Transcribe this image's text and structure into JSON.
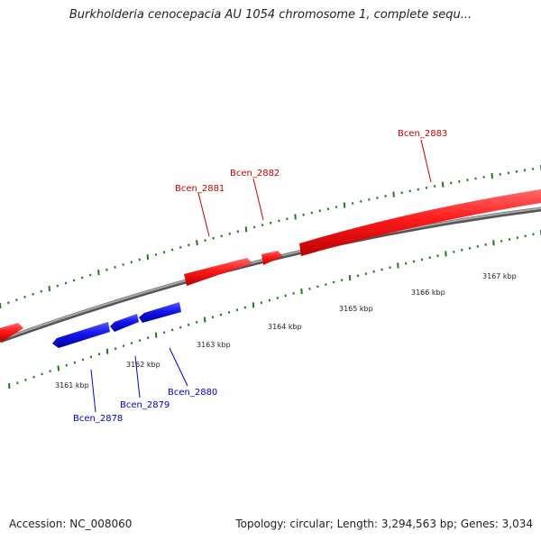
{
  "title": "Burkholderia cenocepacia AU 1054 chromosome 1, complete sequ...",
  "accession": "Accession: NC_008060",
  "summary": "Topology: circular; Length: 3,294,563 bp; Genes: 3,034",
  "colors": {
    "forward_gene": "#ff2020",
    "reverse_gene": "#1a1aff",
    "backbone": "#7a7a7a",
    "ticks": "#1f7a1f",
    "forward_label": "#cc0000",
    "reverse_label": "#0000cc"
  },
  "kbp_labels": [
    "3161 kbp",
    "3162 kbp",
    "3163 kbp",
    "3164 kbp",
    "3165 kbp",
    "3166 kbp",
    "3167 kbp"
  ],
  "genes": [
    {
      "label": "",
      "strand": "forward"
    },
    {
      "label": "Bcen_2881",
      "strand": "forward"
    },
    {
      "label": "Bcen_2882",
      "strand": "forward"
    },
    {
      "label": "Bcen_2883",
      "strand": "forward"
    },
    {
      "label": "Bcen_2878",
      "strand": "reverse"
    },
    {
      "label": "Bcen_2879",
      "strand": "reverse"
    },
    {
      "label": "Bcen_2880",
      "strand": "reverse"
    }
  ]
}
